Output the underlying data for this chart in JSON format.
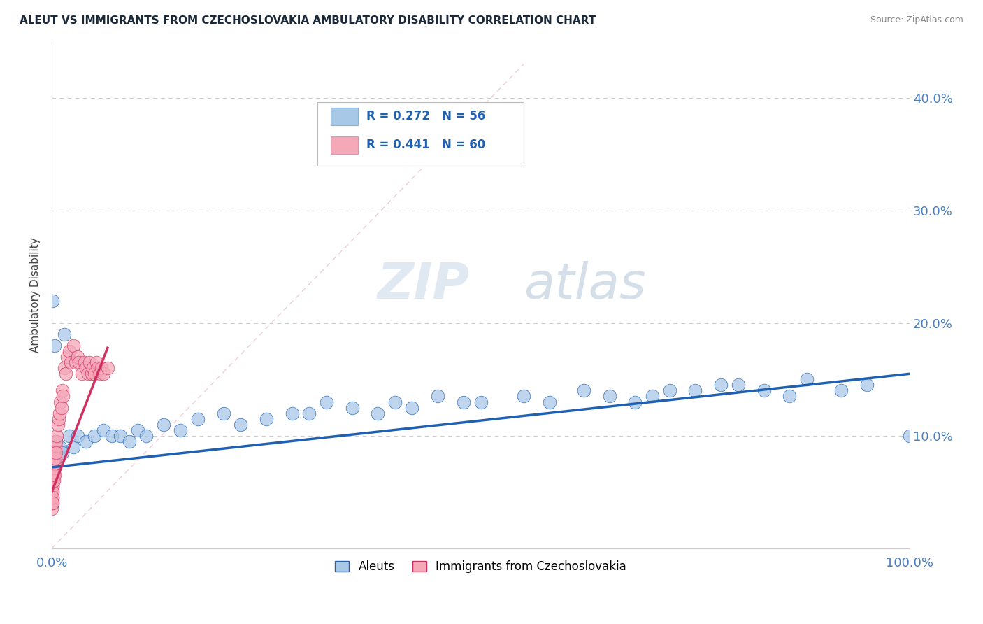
{
  "title": "ALEUT VS IMMIGRANTS FROM CZECHOSLOVAKIA AMBULATORY DISABILITY CORRELATION CHART",
  "source": "Source: ZipAtlas.com",
  "ylabel": "Ambulatory Disability",
  "legend_label1": "Aleuts",
  "legend_label2": "Immigrants from Czechoslovakia",
  "R1": 0.272,
  "N1": 56,
  "R2": 0.441,
  "N2": 60,
  "color_aleuts": "#a8c8e8",
  "color_czech": "#f4a8b8",
  "color_line_aleuts": "#2060b0",
  "color_line_czech": "#d03060",
  "color_diag": "#e0a0b0",
  "watermark_zip": "ZIP",
  "watermark_atlas": "atlas",
  "aleuts_x": [
    0.001,
    0.001,
    0.001,
    0.002,
    0.002,
    0.003,
    0.003,
    0.005,
    0.005,
    0.007,
    0.01,
    0.012,
    0.015,
    0.02,
    0.025,
    0.03,
    0.04,
    0.05,
    0.06,
    0.07,
    0.08,
    0.09,
    0.1,
    0.11,
    0.13,
    0.15,
    0.17,
    0.2,
    0.22,
    0.25,
    0.28,
    0.3,
    0.32,
    0.35,
    0.38,
    0.4,
    0.42,
    0.45,
    0.48,
    0.5,
    0.55,
    0.58,
    0.62,
    0.65,
    0.68,
    0.7,
    0.72,
    0.75,
    0.78,
    0.8,
    0.83,
    0.86,
    0.88,
    0.92,
    0.95,
    1.0
  ],
  "aleuts_y": [
    0.075,
    0.22,
    0.09,
    0.08,
    0.085,
    0.08,
    0.18,
    0.095,
    0.09,
    0.085,
    0.09,
    0.085,
    0.19,
    0.1,
    0.09,
    0.1,
    0.095,
    0.1,
    0.105,
    0.1,
    0.1,
    0.095,
    0.105,
    0.1,
    0.11,
    0.105,
    0.115,
    0.12,
    0.11,
    0.115,
    0.12,
    0.12,
    0.13,
    0.125,
    0.12,
    0.13,
    0.125,
    0.135,
    0.13,
    0.13,
    0.135,
    0.13,
    0.14,
    0.135,
    0.13,
    0.135,
    0.14,
    0.14,
    0.145,
    0.145,
    0.14,
    0.135,
    0.15,
    0.14,
    0.145,
    0.1
  ],
  "czech_x": [
    0.0002,
    0.0002,
    0.0003,
    0.0003,
    0.0004,
    0.0004,
    0.0005,
    0.0005,
    0.0006,
    0.0007,
    0.0008,
    0.0009,
    0.001,
    0.001,
    0.001,
    0.001,
    0.001,
    0.0015,
    0.0015,
    0.002,
    0.002,
    0.002,
    0.003,
    0.003,
    0.003,
    0.004,
    0.004,
    0.005,
    0.005,
    0.006,
    0.007,
    0.008,
    0.009,
    0.01,
    0.011,
    0.012,
    0.013,
    0.015,
    0.016,
    0.018,
    0.02,
    0.022,
    0.025,
    0.028,
    0.03,
    0.032,
    0.035,
    0.038,
    0.04,
    0.042,
    0.044,
    0.046,
    0.048,
    0.05,
    0.052,
    0.054,
    0.056,
    0.058,
    0.06,
    0.065
  ],
  "czech_y": [
    0.06,
    0.04,
    0.055,
    0.035,
    0.065,
    0.045,
    0.06,
    0.04,
    0.055,
    0.05,
    0.06,
    0.065,
    0.07,
    0.055,
    0.05,
    0.045,
    0.04,
    0.07,
    0.065,
    0.075,
    0.065,
    0.06,
    0.085,
    0.075,
    0.065,
    0.09,
    0.08,
    0.095,
    0.085,
    0.1,
    0.11,
    0.115,
    0.12,
    0.13,
    0.125,
    0.14,
    0.135,
    0.16,
    0.155,
    0.17,
    0.175,
    0.165,
    0.18,
    0.165,
    0.17,
    0.165,
    0.155,
    0.165,
    0.16,
    0.155,
    0.165,
    0.155,
    0.16,
    0.155,
    0.165,
    0.16,
    0.155,
    0.16,
    0.155,
    0.16
  ],
  "xlim": [
    0.0,
    1.0
  ],
  "ylim": [
    0.0,
    0.45
  ],
  "yticks": [
    0.0,
    0.1,
    0.2,
    0.3,
    0.4
  ],
  "ytick_labels": [
    "",
    "10.0%",
    "20.0%",
    "30.0%",
    "40.0%"
  ],
  "xtick_labels": [
    "0.0%",
    "100.0%"
  ],
  "grid_color": "#cccccc",
  "spine_color": "#cccccc",
  "tick_color": "#4a80c0",
  "title_color": "#1a2a3a",
  "source_color": "#888888"
}
